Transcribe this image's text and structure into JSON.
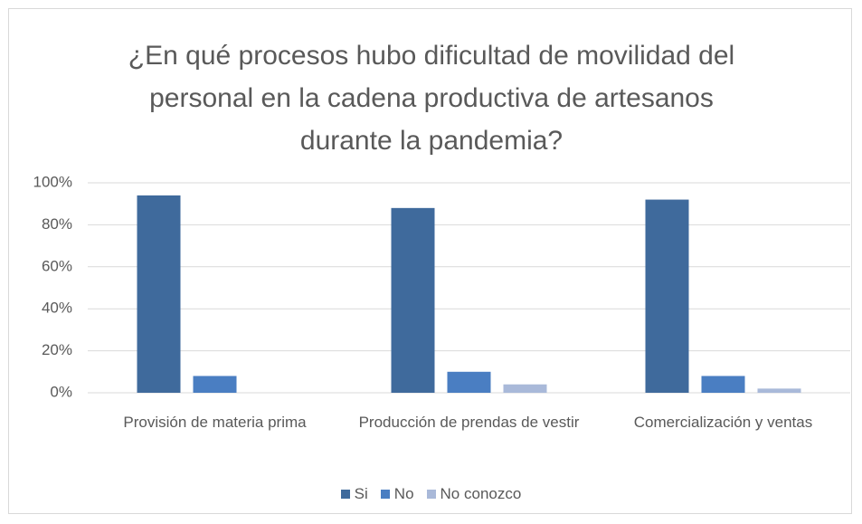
{
  "chart_data": {
    "type": "bar",
    "title": "¿En qué procesos hubo dificultad de movilidad del personal en la cadena productiva de artesanos durante la pandemia?",
    "categories": [
      "Provisión de materia prima",
      "Producción de prendas de vestir",
      "Comercialización y ventas"
    ],
    "series": [
      {
        "name": "Si",
        "color": "#3f6a9c",
        "values": [
          94,
          88,
          92
        ]
      },
      {
        "name": "No",
        "color": "#4a7ec2",
        "values": [
          8,
          10,
          8
        ]
      },
      {
        "name": "No conozco",
        "color": "#a9b9d9",
        "values": [
          0,
          4,
          2
        ]
      }
    ],
    "ylim": [
      0,
      100
    ],
    "yticks": [
      {
        "value": 0,
        "label": "0%"
      },
      {
        "value": 20,
        "label": "20%"
      },
      {
        "value": 40,
        "label": "40%"
      },
      {
        "value": 60,
        "label": "60%"
      },
      {
        "value": 80,
        "label": "80%"
      },
      {
        "value": 100,
        "label": "100%"
      }
    ],
    "grid": true,
    "legend": "bottom"
  }
}
